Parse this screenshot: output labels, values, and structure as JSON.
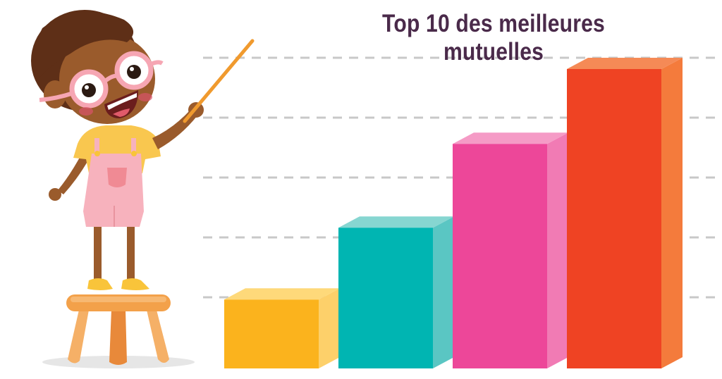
{
  "chart_data": {
    "type": "bar",
    "title": "Top 10 des meilleures mutuelles",
    "xlabel": "",
    "ylabel": "",
    "grid": true,
    "ylim": [
      0,
      5
    ],
    "values": [
      1.15,
      2.35,
      3.75,
      5.0
    ],
    "colors": [
      {
        "front": "#fbb31d",
        "side": "#fdd06a",
        "top": "#fed97a"
      },
      {
        "front": "#00b5b2",
        "side": "#5ac6c3",
        "top": "#86d6d1"
      },
      {
        "front": "#ed4799",
        "side": "#f17bb4",
        "top": "#f59bc6"
      },
      {
        "front": "#ef4323",
        "side": "#f47b3c",
        "top": "#f58a56"
      }
    ]
  },
  "illustration": {
    "subject": "cartoon girl with glasses and pointer standing on a stool",
    "colors": {
      "skin": "#9a5b2c",
      "hair": "#5e2f17",
      "glasses": "#f6a6b3",
      "shirt": "#f9c74f",
      "overalls": "#f7b2bd",
      "stool": "#f3a14a",
      "pointer": "#f09a2e"
    }
  }
}
